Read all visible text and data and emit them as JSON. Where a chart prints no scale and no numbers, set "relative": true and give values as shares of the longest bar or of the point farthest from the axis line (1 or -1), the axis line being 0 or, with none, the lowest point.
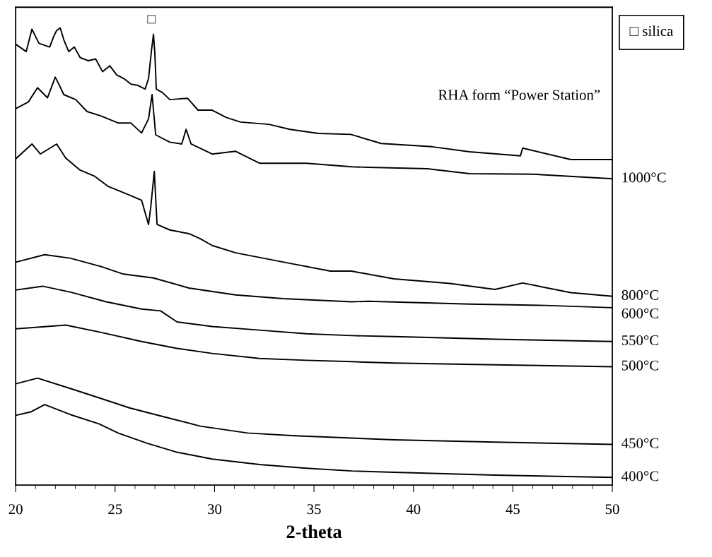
{
  "chart_data": {
    "type": "line",
    "relative": true,
    "xlabel": "2-theta",
    "xlim": [
      20,
      50
    ],
    "xticks": [
      20,
      25,
      30,
      35,
      40,
      45,
      50
    ],
    "tick_labels": "x",
    "grid": false,
    "marker": "none",
    "line_style": "solid",
    "annotations": [
      {
        "text": "□",
        "x": 26.93,
        "y": 0.986
      },
      "□ silica",
      "RHA form “Power Station”"
    ],
    "series": [
      {
        "color": "#000000",
        "x": [
          20.04,
          20.53,
          20.82,
          21.17,
          21.71,
          21.92,
          22.06,
          22.24,
          22.42,
          22.67,
          22.95,
          23.24,
          23.66,
          24.02,
          24.37,
          24.73,
          25.08,
          25.44,
          25.79,
          26.15,
          26.51,
          26.68,
          26.83,
          26.93,
          27.0,
          27.07,
          27.39,
          27.75,
          28.64,
          29.17,
          29.88,
          30.59,
          31.3,
          32.73,
          33.79,
          35.22,
          36.85,
          38.38,
          40.94,
          42.82,
          45.38,
          45.49,
          47.91,
          50.0
        ],
        "values": [
          0.963,
          0.948,
          0.997,
          0.966,
          0.958,
          0.982,
          0.994,
          1.0,
          0.974,
          0.948,
          0.958,
          0.935,
          0.928,
          0.932,
          0.904,
          0.917,
          0.897,
          0.889,
          0.877,
          0.874,
          0.866,
          0.889,
          0.951,
          0.986,
          0.943,
          0.866,
          0.858,
          0.843,
          0.846,
          0.82,
          0.82,
          0.804,
          0.794,
          0.789,
          0.778,
          0.769,
          0.767,
          0.747,
          0.74,
          0.729,
          0.72,
          0.737,
          0.712,
          0.712
        ]
      },
      {
        "name": "1000°C",
        "color": "#000000",
        "x": [
          20.04,
          20.64,
          21.1,
          21.6,
          21.99,
          22.17,
          22.42,
          23.02,
          23.59,
          24.3,
          25.15,
          25.79,
          26.33,
          26.68,
          26.86,
          27.04,
          27.75,
          28.35,
          28.57,
          28.82,
          29.88,
          31.06,
          32.26,
          34.61,
          36.89,
          37.74,
          40.69,
          42.82,
          46.02,
          50.0
        ],
        "values": [
          0.824,
          0.838,
          0.869,
          0.847,
          0.892,
          0.877,
          0.854,
          0.843,
          0.817,
          0.807,
          0.792,
          0.792,
          0.77,
          0.801,
          0.854,
          0.766,
          0.75,
          0.746,
          0.778,
          0.746,
          0.724,
          0.73,
          0.704,
          0.704,
          0.696,
          0.695,
          0.692,
          0.681,
          0.68,
          0.67
        ]
      },
      {
        "name": "800°C",
        "color": "#000000",
        "x": [
          20.04,
          20.82,
          21.24,
          22.06,
          22.52,
          23.24,
          23.95,
          24.66,
          25.51,
          26.33,
          26.68,
          26.79,
          26.97,
          27.11,
          27.75,
          28.71,
          29.28,
          29.88,
          31.06,
          33.44,
          35.82,
          36.89,
          39.02,
          41.83,
          44.1,
          45.49,
          47.91,
          50.0
        ],
        "values": [
          0.715,
          0.746,
          0.724,
          0.746,
          0.715,
          0.689,
          0.676,
          0.653,
          0.638,
          0.623,
          0.57,
          0.607,
          0.686,
          0.57,
          0.558,
          0.55,
          0.539,
          0.524,
          0.508,
          0.488,
          0.468,
          0.468,
          0.451,
          0.441,
          0.428,
          0.442,
          0.421,
          0.413
        ]
      },
      {
        "name": "600°C",
        "color": "#000000",
        "x": [
          20.04,
          21.46,
          22.77,
          24.3,
          25.37,
          26.93,
          28.71,
          31.06,
          33.44,
          36.89,
          37.74,
          42.82,
          46.63,
          50.0
        ],
        "values": [
          0.488,
          0.504,
          0.496,
          0.478,
          0.462,
          0.453,
          0.431,
          0.416,
          0.408,
          0.401,
          0.402,
          0.396,
          0.393,
          0.388
        ]
      },
      {
        "name": "550°C",
        "color": "#000000",
        "x": [
          20.04,
          21.35,
          22.77,
          24.55,
          26.33,
          27.29,
          28.11,
          29.88,
          32.26,
          34.61,
          36.89,
          39.02,
          44.1,
          50.0
        ],
        "values": [
          0.427,
          0.435,
          0.422,
          0.401,
          0.385,
          0.381,
          0.357,
          0.347,
          0.339,
          0.331,
          0.327,
          0.325,
          0.319,
          0.314
        ]
      },
      {
        "name": "500°C",
        "color": "#000000",
        "x": [
          20.04,
          22.52,
          24.3,
          26.33,
          28.11,
          29.88,
          32.26,
          34.61,
          36.89,
          39.02,
          44.1,
          50.0
        ],
        "values": [
          0.342,
          0.35,
          0.334,
          0.314,
          0.299,
          0.288,
          0.277,
          0.273,
          0.27,
          0.267,
          0.263,
          0.259
        ]
      },
      {
        "name": "450°C",
        "color": "#000000",
        "x": [
          20.04,
          21.1,
          22.77,
          24.19,
          25.72,
          27.5,
          29.28,
          31.66,
          34.04,
          36.89,
          39.02,
          44.1,
          50.0
        ],
        "values": [
          0.222,
          0.234,
          0.211,
          0.191,
          0.169,
          0.149,
          0.129,
          0.114,
          0.108,
          0.103,
          0.099,
          0.094,
          0.089
        ]
      },
      {
        "name": "400°C",
        "color": "#000000",
        "x": [
          20.04,
          20.75,
          21.46,
          22.77,
          24.19,
          25.15,
          26.58,
          28.11,
          29.88,
          32.26,
          34.61,
          36.89,
          39.02,
          44.1,
          50.0
        ],
        "values": [
          0.153,
          0.16,
          0.176,
          0.154,
          0.134,
          0.114,
          0.092,
          0.072,
          0.057,
          0.045,
          0.037,
          0.031,
          0.028,
          0.022,
          0.017
        ]
      }
    ]
  }
}
